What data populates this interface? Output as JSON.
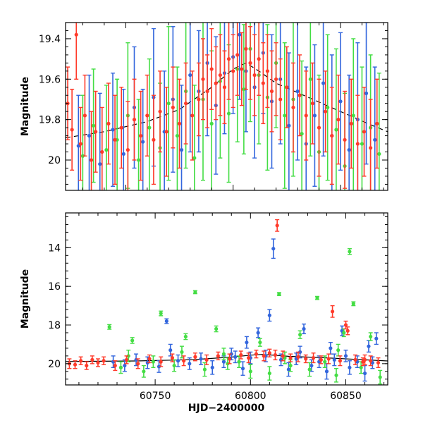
{
  "chart_data": [
    {
      "type": "scatter",
      "title": "",
      "xlabel": "",
      "ylabel": "Magnitude",
      "xlim": [
        60722,
        60872
      ],
      "ylim": [
        20.15,
        19.32
      ],
      "y_inverted": true,
      "xticks": [
        60750,
        60800,
        60850
      ],
      "xtick_labels": [
        "60750",
        "60800",
        "60850"
      ],
      "xtick_labels_shown": false,
      "yticks": [
        19.4,
        19.6,
        19.8,
        20.0
      ],
      "ytick_labels": [
        "19.4",
        "19.6",
        "19.8",
        "20"
      ],
      "grid": false,
      "legend": "none",
      "has_error_bars": true,
      "model_curve": {
        "style": "dashed",
        "color": "#000000",
        "x": [
          60722,
          60740,
          60760,
          60775,
          60790,
          60800,
          60806,
          60812,
          60820,
          60835,
          60850,
          60865,
          60872
        ],
        "y": [
          19.89,
          19.86,
          19.81,
          19.75,
          19.64,
          19.55,
          19.52,
          19.56,
          19.62,
          19.69,
          19.76,
          19.83,
          19.86
        ]
      },
      "series": [
        {
          "color": "#3366dd",
          "x": [
            60728,
            60733,
            60738,
            60744,
            60749,
            60754,
            60758,
            60763,
            60768,
            60772,
            60776,
            60780,
            60784,
            60788,
            60792,
            60796,
            60800,
            60803,
            60806,
            60810,
            60814,
            60818,
            60822,
            60826,
            60830,
            60834,
            60838,
            60842,
            60846,
            60850,
            60854,
            60858,
            60862,
            60866
          ],
          "y": [
            19.93,
            19.88,
            20.02,
            19.85,
            19.97,
            19.74,
            19.91,
            19.69,
            19.86,
            19.7,
            19.95,
            19.58,
            19.66,
            19.52,
            19.73,
            19.57,
            19.49,
            19.38,
            19.56,
            19.64,
            19.47,
            19.71,
            19.6,
            19.83,
            19.66,
            19.92,
            19.78,
            19.62,
            19.88,
            19.71,
            19.95,
            19.8,
            19.67,
            19.9
          ],
          "err": [
            0.25,
            0.3,
            0.35,
            0.28,
            0.32,
            0.3,
            0.26,
            0.34,
            0.3,
            0.36,
            0.32,
            0.38,
            0.3,
            0.36,
            0.34,
            0.3,
            0.28,
            0.32,
            0.3,
            0.35,
            0.3,
            0.33,
            0.32,
            0.36,
            0.34,
            0.38,
            0.35,
            0.36,
            0.4,
            0.34,
            0.37,
            0.38,
            0.35,
            0.36
          ]
        },
        {
          "color": "#44dd44",
          "x": [
            60730,
            60735,
            60741,
            60746,
            60751,
            60756,
            60761,
            60766,
            60770,
            60774,
            60778,
            60782,
            60786,
            60790,
            60794,
            60798,
            60802,
            60805,
            60808,
            60812,
            60816,
            60820,
            60824,
            60828,
            60832,
            60836,
            60840,
            60844,
            60848,
            60852,
            60856,
            60860,
            60864,
            60868
          ],
          "y": [
            19.98,
            19.83,
            19.95,
            19.9,
            19.78,
            20.0,
            19.84,
            19.94,
            19.72,
            19.88,
            19.66,
            19.99,
            19.7,
            19.82,
            19.61,
            19.77,
            19.55,
            19.65,
            19.45,
            19.58,
            19.69,
            19.52,
            19.78,
            19.7,
            19.87,
            19.6,
            19.96,
            19.74,
            19.85,
            20.03,
            19.78,
            19.92,
            19.84,
            19.97
          ],
          "err": [
            0.3,
            0.28,
            0.32,
            0.3,
            0.36,
            0.3,
            0.34,
            0.32,
            0.38,
            0.34,
            0.38,
            0.36,
            0.4,
            0.36,
            0.38,
            0.34,
            0.36,
            0.32,
            0.36,
            0.34,
            0.36,
            0.32,
            0.36,
            0.38,
            0.36,
            0.38,
            0.38,
            0.36,
            0.4,
            0.36,
            0.38,
            0.38,
            0.36,
            0.4
          ]
        },
        {
          "color": "#ff3a2a",
          "x": [
            60723,
            60725,
            60727,
            60729,
            60731,
            60734,
            60736,
            60739,
            60742,
            60745,
            60748,
            60751,
            60754,
            60757,
            60760,
            60763,
            60766,
            60769,
            60772,
            60775,
            60778,
            60781,
            60784,
            60786,
            60788,
            60790,
            60792,
            60794,
            60796,
            60798,
            60800,
            60802,
            60804,
            60806,
            60808,
            60810,
            60812,
            60814,
            60816,
            60818,
            60820,
            60822,
            60825,
            60828,
            60831,
            60834,
            60837,
            60840,
            60843,
            60846,
            60849,
            60852,
            60855,
            60858,
            60861,
            60864,
            60867
          ],
          "y": [
            19.72,
            19.85,
            19.38,
            19.92,
            19.78,
            20.0,
            19.86,
            19.96,
            19.82,
            19.9,
            19.84,
            19.95,
            19.8,
            19.88,
            19.78,
            19.9,
            19.76,
            19.86,
            19.74,
            19.82,
            19.72,
            19.78,
            19.7,
            19.6,
            19.66,
            19.55,
            19.62,
            19.58,
            19.64,
            19.5,
            19.56,
            19.48,
            19.55,
            19.45,
            19.52,
            19.58,
            19.5,
            19.62,
            19.56,
            19.66,
            19.6,
            19.7,
            19.64,
            19.74,
            19.68,
            19.78,
            19.72,
            19.84,
            19.76,
            19.88,
            19.8,
            19.9,
            19.82,
            19.92,
            19.86,
            19.94,
            19.82
          ],
          "err": [
            0.18,
            0.2,
            0.22,
            0.18,
            0.2,
            0.24,
            0.2,
            0.22,
            0.2,
            0.22,
            0.2,
            0.24,
            0.2,
            0.22,
            0.2,
            0.22,
            0.2,
            0.22,
            0.2,
            0.22,
            0.2,
            0.22,
            0.18,
            0.2,
            0.18,
            0.2,
            0.18,
            0.2,
            0.18,
            0.2,
            0.18,
            0.2,
            0.18,
            0.2,
            0.18,
            0.2,
            0.18,
            0.2,
            0.18,
            0.2,
            0.18,
            0.2,
            0.2,
            0.22,
            0.2,
            0.22,
            0.2,
            0.24,
            0.2,
            0.24,
            0.22,
            0.24,
            0.22,
            0.24,
            0.22,
            0.24,
            0.22
          ]
        }
      ]
    },
    {
      "type": "scatter",
      "title": "",
      "xlabel": "HJD−2400000",
      "ylabel": "Magnitude",
      "xlim": [
        60703,
        60872
      ],
      "ylim": [
        21.1,
        12.2
      ],
      "y_inverted": true,
      "xticks": [
        60750,
        60800,
        60850
      ],
      "xtick_labels": [
        "60750",
        "60800",
        "60850"
      ],
      "yticks": [
        14,
        16,
        18,
        20
      ],
      "ytick_labels": [
        "14",
        "16",
        "18",
        "20"
      ],
      "grid": false,
      "legend": "none",
      "has_error_bars": true,
      "model_curve": {
        "style": "solid",
        "color": "#000000",
        "x": [
          60703,
          60740,
          60770,
          60790,
          60800,
          60806,
          60812,
          60820,
          60840,
          60860,
          60872
        ],
        "y": [
          19.89,
          19.86,
          19.79,
          19.66,
          19.56,
          19.52,
          19.56,
          19.62,
          19.7,
          19.8,
          19.86
        ]
      },
      "series": [
        {
          "color": "#3366dd",
          "x": [
            60728,
            60734,
            60740,
            60746,
            60752,
            60756,
            60762,
            60768,
            60774,
            60780,
            60786,
            60792,
            60796,
            60800,
            60804,
            60808,
            60810,
            60812,
            60816,
            60820,
            60824,
            60828,
            60832,
            60836,
            60840,
            60844,
            60848,
            60852,
            60856,
            60860,
            60864,
            60866,
            60758,
            60790,
            60798,
            60826,
            60842,
            60850,
            60862
          ],
          "y": [
            19.9,
            20.1,
            19.8,
            19.95,
            20.15,
            17.8,
            19.85,
            20.0,
            19.75,
            20.2,
            19.9,
            19.65,
            20.25,
            19.7,
            18.4,
            19.6,
            17.5,
            14.05,
            19.8,
            20.3,
            19.75,
            18.2,
            20.1,
            19.9,
            20.4,
            19.8,
            18.3,
            20.2,
            19.9,
            20.5,
            19.95,
            18.7,
            19.3,
            19.5,
            18.9,
            19.4,
            19.2,
            19.6,
            19.1
          ],
          "err": [
            0.3,
            0.3,
            0.3,
            0.3,
            0.3,
            0.12,
            0.3,
            0.3,
            0.3,
            0.35,
            0.3,
            0.3,
            0.35,
            0.3,
            0.25,
            0.3,
            0.3,
            0.5,
            0.3,
            0.35,
            0.3,
            0.25,
            0.3,
            0.3,
            0.4,
            0.3,
            0.25,
            0.35,
            0.3,
            0.4,
            0.3,
            0.3,
            0.3,
            0.3,
            0.3,
            0.3,
            0.3,
            0.3,
            0.3
          ]
        },
        {
          "color": "#44dd44",
          "x": [
            60726,
            60732,
            60738,
            60744,
            60749,
            60753,
            60760,
            60766,
            60771,
            60776,
            60782,
            60788,
            60794,
            60800,
            60805,
            60810,
            60815,
            60821,
            60826,
            60831,
            60835,
            60839,
            60845,
            60849,
            60852,
            60854,
            60858,
            60863,
            60868,
            60736,
            60764,
            60786,
            60818,
            60846
          ],
          "y": [
            18.1,
            20.2,
            18.8,
            20.4,
            19.9,
            17.4,
            20.1,
            18.6,
            16.3,
            20.3,
            18.2,
            20.0,
            19.9,
            20.4,
            18.9,
            20.5,
            16.4,
            20.1,
            18.5,
            20.3,
            16.6,
            19.9,
            20.6,
            18.4,
            14.2,
            16.9,
            20.2,
            18.6,
            20.7,
            19.6,
            19.4,
            19.5,
            19.7,
            19.3
          ],
          "err": [
            0.12,
            0.3,
            0.15,
            0.3,
            0.3,
            0.12,
            0.3,
            0.15,
            0.08,
            0.35,
            0.15,
            0.3,
            0.3,
            0.35,
            0.2,
            0.35,
            0.08,
            0.3,
            0.2,
            0.35,
            0.08,
            0.3,
            0.35,
            0.2,
            0.15,
            0.1,
            0.3,
            0.2,
            0.35,
            0.3,
            0.3,
            0.3,
            0.3,
            0.3
          ]
        },
        {
          "color": "#ff3a2a",
          "x": [
            60705,
            60708,
            60711,
            60714,
            60717,
            60720,
            60723,
            60729,
            60735,
            60741,
            60747,
            60753,
            60759,
            60765,
            60771,
            60777,
            60783,
            60789,
            60795,
            60799,
            60803,
            60807,
            60810,
            60813,
            60814,
            60817,
            60821,
            60825,
            60829,
            60833,
            60837,
            60841,
            60843,
            60847,
            60851,
            60855,
            60859,
            60863,
            60867,
            60850,
            60860
          ],
          "y": [
            20.0,
            20.05,
            19.85,
            20.1,
            19.8,
            19.95,
            19.85,
            20.1,
            19.8,
            20.0,
            19.75,
            19.9,
            19.7,
            19.85,
            19.65,
            19.8,
            19.6,
            19.75,
            19.55,
            19.7,
            19.5,
            19.6,
            19.45,
            19.55,
            12.85,
            19.6,
            19.7,
            19.65,
            19.75,
            19.7,
            19.8,
            19.75,
            17.3,
            19.85,
            18.3,
            19.8,
            19.9,
            19.85,
            19.95,
            18.0,
            19.8
          ],
          "err": [
            0.25,
            0.2,
            0.2,
            0.2,
            0.2,
            0.2,
            0.2,
            0.25,
            0.2,
            0.25,
            0.2,
            0.25,
            0.2,
            0.25,
            0.2,
            0.25,
            0.2,
            0.25,
            0.2,
            0.25,
            0.2,
            0.25,
            0.2,
            0.25,
            0.3,
            0.25,
            0.2,
            0.25,
            0.2,
            0.25,
            0.2,
            0.25,
            0.3,
            0.25,
            0.2,
            0.25,
            0.2,
            0.25,
            0.25,
            0.2,
            0.25
          ]
        }
      ]
    }
  ]
}
